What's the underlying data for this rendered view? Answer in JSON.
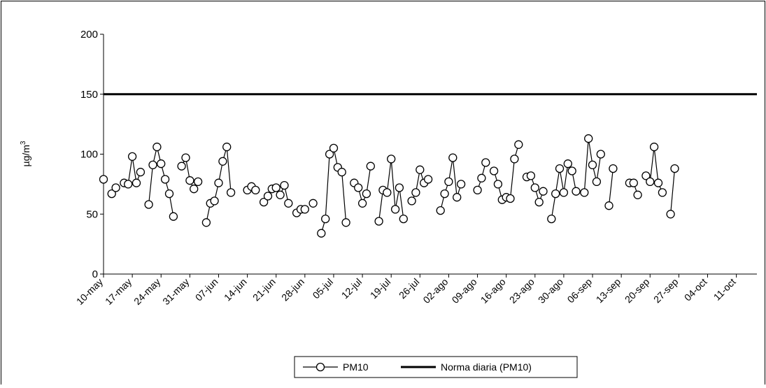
{
  "chart_data": {
    "type": "line",
    "title": "",
    "xlabel": "",
    "ylabel": "µg/m",
    "ylabel_superscript": "3",
    "ylim": [
      0,
      200
    ],
    "yticks": [
      0,
      50,
      100,
      150,
      200
    ],
    "xlim": [
      "2010-05-10",
      "2010-10-16"
    ],
    "categories": [
      "10-may",
      "17-may",
      "24-may",
      "31-may",
      "07-jun",
      "14-jun",
      "21-jun",
      "28-jun",
      "05-jul",
      "12-jul",
      "19-jul",
      "26-jul",
      "02-ago",
      "09-ago",
      "16-ago",
      "23-ago",
      "30-ago",
      "06-sep",
      "13-sep",
      "20-sep",
      "27-sep",
      "04-oct",
      "11-oct"
    ],
    "category_dates": [
      "2010-05-10",
      "2010-05-17",
      "2010-05-24",
      "2010-05-31",
      "2010-06-07",
      "2010-06-14",
      "2010-06-21",
      "2010-06-28",
      "2010-07-05",
      "2010-07-12",
      "2010-07-19",
      "2010-07-26",
      "2010-08-02",
      "2010-08-09",
      "2010-08-16",
      "2010-08-23",
      "2010-08-30",
      "2010-09-06",
      "2010-09-13",
      "2010-09-20",
      "2010-09-27",
      "2010-10-04",
      "2010-10-11"
    ],
    "grid": false,
    "legend_position": "bottom",
    "series": [
      {
        "name": "PM10",
        "style": "line-with-circle-markers",
        "color": "#000000",
        "points": [
          [
            "2010-05-10",
            79
          ],
          [
            "2010-05-11",
            null
          ],
          [
            "2010-05-12",
            67
          ],
          [
            "2010-05-13",
            72
          ],
          [
            "2010-05-14",
            null
          ],
          [
            "2010-05-15",
            76
          ],
          [
            "2010-05-16",
            75
          ],
          [
            "2010-05-17",
            98
          ],
          [
            "2010-05-18",
            76
          ],
          [
            "2010-05-19",
            85
          ],
          [
            "2010-05-20",
            null
          ],
          [
            "2010-05-21",
            58
          ],
          [
            "2010-05-22",
            91
          ],
          [
            "2010-05-23",
            106
          ],
          [
            "2010-05-24",
            92
          ],
          [
            "2010-05-25",
            79
          ],
          [
            "2010-05-26",
            67
          ],
          [
            "2010-05-27",
            48
          ],
          [
            "2010-05-28",
            null
          ],
          [
            "2010-05-29",
            90
          ],
          [
            "2010-05-30",
            97
          ],
          [
            "2010-05-31",
            78
          ],
          [
            "2010-06-01",
            71
          ],
          [
            "2010-06-02",
            77
          ],
          [
            "2010-06-03",
            null
          ],
          [
            "2010-06-04",
            43
          ],
          [
            "2010-06-05",
            59
          ],
          [
            "2010-06-06",
            61
          ],
          [
            "2010-06-07",
            76
          ],
          [
            "2010-06-08",
            94
          ],
          [
            "2010-06-09",
            106
          ],
          [
            "2010-06-10",
            68
          ],
          [
            "2010-06-11",
            null
          ],
          [
            "2010-06-12",
            null
          ],
          [
            "2010-06-13",
            null
          ],
          [
            "2010-06-14",
            70
          ],
          [
            "2010-06-15",
            73
          ],
          [
            "2010-06-16",
            70
          ],
          [
            "2010-06-17",
            null
          ],
          [
            "2010-06-18",
            60
          ],
          [
            "2010-06-19",
            65
          ],
          [
            "2010-06-20",
            71
          ],
          [
            "2010-06-21",
            72
          ],
          [
            "2010-06-22",
            66
          ],
          [
            "2010-06-23",
            74
          ],
          [
            "2010-06-24",
            59
          ],
          [
            "2010-06-25",
            null
          ],
          [
            "2010-06-26",
            51
          ],
          [
            "2010-06-27",
            54
          ],
          [
            "2010-06-28",
            54
          ],
          [
            "2010-06-29",
            null
          ],
          [
            "2010-06-30",
            59
          ],
          [
            "2010-07-01",
            null
          ],
          [
            "2010-07-02",
            34
          ],
          [
            "2010-07-03",
            46
          ],
          [
            "2010-07-04",
            100
          ],
          [
            "2010-07-05",
            105
          ],
          [
            "2010-07-06",
            89
          ],
          [
            "2010-07-07",
            85
          ],
          [
            "2010-07-08",
            43
          ],
          [
            "2010-07-09",
            null
          ],
          [
            "2010-07-10",
            76
          ],
          [
            "2010-07-11",
            72
          ],
          [
            "2010-07-12",
            59
          ],
          [
            "2010-07-13",
            67
          ],
          [
            "2010-07-14",
            90
          ],
          [
            "2010-07-15",
            null
          ],
          [
            "2010-07-16",
            44
          ],
          [
            "2010-07-17",
            70
          ],
          [
            "2010-07-18",
            68
          ],
          [
            "2010-07-19",
            96
          ],
          [
            "2010-07-20",
            54
          ],
          [
            "2010-07-21",
            72
          ],
          [
            "2010-07-22",
            46
          ],
          [
            "2010-07-23",
            null
          ],
          [
            "2010-07-24",
            61
          ],
          [
            "2010-07-25",
            68
          ],
          [
            "2010-07-26",
            87
          ],
          [
            "2010-07-27",
            76
          ],
          [
            "2010-07-28",
            79
          ],
          [
            "2010-07-29",
            null
          ],
          [
            "2010-07-30",
            null
          ],
          [
            "2010-07-31",
            53
          ],
          [
            "2010-08-01",
            67
          ],
          [
            "2010-08-02",
            77
          ],
          [
            "2010-08-03",
            97
          ],
          [
            "2010-08-04",
            64
          ],
          [
            "2010-08-05",
            75
          ],
          [
            "2010-08-06",
            null
          ],
          [
            "2010-08-07",
            null
          ],
          [
            "2010-08-08",
            null
          ],
          [
            "2010-08-09",
            70
          ],
          [
            "2010-08-10",
            80
          ],
          [
            "2010-08-11",
            93
          ],
          [
            "2010-08-12",
            null
          ],
          [
            "2010-08-13",
            86
          ],
          [
            "2010-08-14",
            75
          ],
          [
            "2010-08-15",
            62
          ],
          [
            "2010-08-16",
            64
          ],
          [
            "2010-08-17",
            63
          ],
          [
            "2010-08-18",
            96
          ],
          [
            "2010-08-19",
            108
          ],
          [
            "2010-08-20",
            null
          ],
          [
            "2010-08-21",
            81
          ],
          [
            "2010-08-22",
            82
          ],
          [
            "2010-08-23",
            72
          ],
          [
            "2010-08-24",
            60
          ],
          [
            "2010-08-25",
            69
          ],
          [
            "2010-08-26",
            null
          ],
          [
            "2010-08-27",
            46
          ],
          [
            "2010-08-28",
            67
          ],
          [
            "2010-08-29",
            88
          ],
          [
            "2010-08-30",
            68
          ],
          [
            "2010-08-31",
            92
          ],
          [
            "2010-09-01",
            86
          ],
          [
            "2010-09-02",
            69
          ],
          [
            "2010-09-03",
            null
          ],
          [
            "2010-09-04",
            68
          ],
          [
            "2010-09-05",
            113
          ],
          [
            "2010-09-06",
            91
          ],
          [
            "2010-09-07",
            77
          ],
          [
            "2010-09-08",
            100
          ],
          [
            "2010-09-09",
            null
          ],
          [
            "2010-09-10",
            57
          ],
          [
            "2010-09-11",
            88
          ],
          [
            "2010-09-12",
            null
          ],
          [
            "2010-09-13",
            null
          ],
          [
            "2010-09-14",
            null
          ],
          [
            "2010-09-15",
            76
          ],
          [
            "2010-09-16",
            76
          ],
          [
            "2010-09-17",
            66
          ],
          [
            "2010-09-18",
            null
          ],
          [
            "2010-09-19",
            82
          ],
          [
            "2010-09-20",
            77
          ],
          [
            "2010-09-21",
            106
          ],
          [
            "2010-09-22",
            76
          ],
          [
            "2010-09-23",
            68
          ],
          [
            "2010-09-24",
            null
          ],
          [
            "2010-09-25",
            50
          ],
          [
            "2010-09-26",
            88
          ]
        ]
      },
      {
        "name": "Norma diaria (PM10)",
        "style": "thick-line",
        "color": "#000000",
        "points": [
          [
            "2010-05-10",
            150
          ],
          [
            "2010-10-16",
            150
          ]
        ]
      }
    ]
  }
}
